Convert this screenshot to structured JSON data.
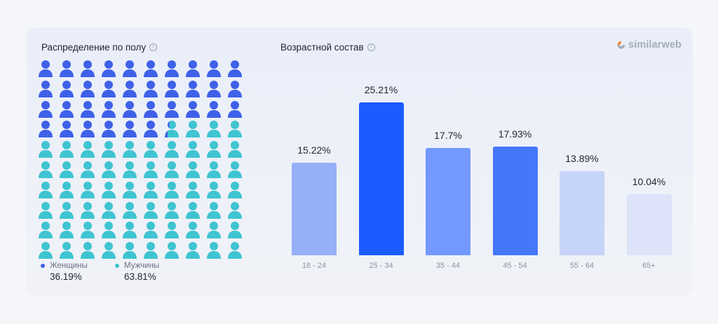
{
  "brand": {
    "name": "similarweb",
    "logo_colors": [
      "#f58a3d",
      "#a7adbb"
    ]
  },
  "gender": {
    "title": "Распределение по полу",
    "info_icon": "info-icon",
    "person_icon": "person-icon",
    "total_icons": 100,
    "columns": 10,
    "women_label": "Женщины",
    "women_value": "36.19%",
    "women_share": 36.19,
    "women_color": "#3f61e9",
    "men_label": "Мужчины",
    "men_value": "63.81%",
    "men_share": 63.81,
    "men_color": "#3fc4d1"
  },
  "chart_data": {
    "type": "bar",
    "title": "Возрастной состав",
    "categories": [
      "18 - 24",
      "25 - 34",
      "35 - 44",
      "45 - 54",
      "55 - 64",
      "65+"
    ],
    "values": [
      15.22,
      25.21,
      17.7,
      17.93,
      13.89,
      10.04
    ],
    "value_labels": [
      "15.22%",
      "25.21%",
      "17.7%",
      "17.93%",
      "13.89%",
      "10.04%"
    ],
    "colors": [
      "#95b0f8",
      "#1b5bff",
      "#7399fe",
      "#4577fd",
      "#c7d4f9",
      "#dde4f9"
    ],
    "ylim": [
      0,
      25.21
    ],
    "grid": false,
    "xlabel": "",
    "ylabel": ""
  }
}
